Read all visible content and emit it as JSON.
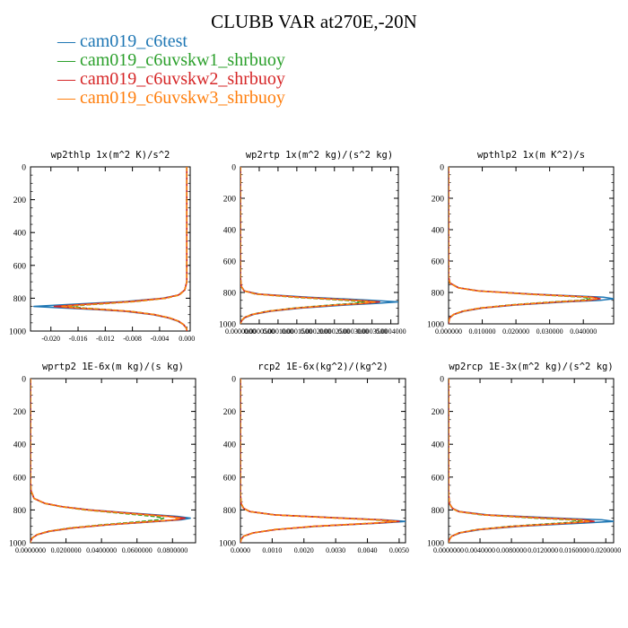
{
  "title": "CLUBB VAR at270E,-20N",
  "legend": [
    {
      "label": "cam019_c6test",
      "color": "#1f77b4"
    },
    {
      "label": "cam019_c6uvskw1_shrbuoy",
      "color": "#2ca02c"
    },
    {
      "label": "cam019_c6uvskw2_shrbuoy",
      "color": "#d62728"
    },
    {
      "label": "cam019_c6uvskw3_shrbuoy",
      "color": "#ff7f0e"
    }
  ],
  "chart_data": [
    {
      "type": "line",
      "title": "wp2thlp  1x(m^2 K)/s^2",
      "xlim": [
        -0.023,
        0.0005
      ],
      "ylim": [
        1000,
        0
      ],
      "xticks": [
        -0.02,
        -0.016,
        -0.012,
        -0.008,
        -0.004,
        0.0
      ],
      "xtick_labels": [
        "-0.020",
        "-0.016",
        "-0.012",
        "-0.008",
        "-0.004",
        "0.000"
      ],
      "yticks": [
        0,
        200,
        400,
        600,
        800,
        1000
      ],
      "ytick_labels": [
        "0",
        "200",
        "400",
        "600",
        "800",
        "1000"
      ],
      "y": [
        0,
        200,
        400,
        600,
        700,
        750,
        780,
        800,
        820,
        840,
        850,
        860,
        870,
        880,
        900,
        920,
        940,
        960,
        980,
        990,
        1000
      ],
      "series": [
        {
          "name": "cam019_c6test",
          "values": [
            0.0,
            0.0,
            0.0,
            0.0,
            0.0,
            -0.0003,
            -0.0012,
            -0.0035,
            -0.009,
            -0.018,
            -0.0225,
            -0.018,
            -0.013,
            -0.009,
            -0.005,
            -0.0027,
            -0.0013,
            -0.0005,
            -0.0001,
            0.0,
            0.0
          ]
        },
        {
          "name": "cam019_c6uvskw1_shrbuoy",
          "values": [
            0.0,
            0.0,
            0.0,
            0.0,
            0.0,
            -0.0003,
            -0.0011,
            -0.003,
            -0.0075,
            -0.0145,
            -0.0175,
            -0.015,
            -0.0115,
            -0.0082,
            -0.0047,
            -0.0025,
            -0.0012,
            -0.0005,
            -0.0001,
            0.0,
            0.0
          ]
        },
        {
          "name": "cam019_c6uvskw2_shrbuoy",
          "values": [
            0.0,
            0.0,
            0.0,
            0.0,
            0.0,
            -0.0003,
            -0.0012,
            -0.0033,
            -0.0082,
            -0.016,
            -0.0195,
            -0.0165,
            -0.0122,
            -0.0086,
            -0.0048,
            -0.0026,
            -0.0012,
            -0.0005,
            -0.0001,
            0.0,
            0.0
          ]
        },
        {
          "name": "cam019_c6uvskw3_shrbuoy",
          "values": [
            0.0,
            0.0,
            0.0,
            0.0,
            0.0,
            -0.0003,
            -0.0011,
            -0.0031,
            -0.0078,
            -0.015,
            -0.0185,
            -0.0158,
            -0.0118,
            -0.0084,
            -0.0047,
            -0.0025,
            -0.0012,
            -0.0005,
            -0.0001,
            0.0,
            0.0
          ]
        }
      ]
    },
    {
      "type": "line",
      "title": "wp2rtp  1x(m^2 kg)/(s^2 kg)",
      "xlim": [
        0,
        0.00042
      ],
      "ylim": [
        1000,
        0
      ],
      "xticks": [
        0,
        5e-05,
        0.0001,
        0.00015,
        0.0002,
        0.00025,
        0.0003,
        0.00035,
        0.0004
      ],
      "xtick_labels": [
        "0.0000000",
        "0.0000500",
        "0.0001000",
        "0.0001500",
        "0.0002000",
        "0.0002500",
        "0.0003000",
        "0.0003500",
        "0.0004000"
      ],
      "yticks": [
        0,
        200,
        400,
        600,
        800,
        1000
      ],
      "ytick_labels": [
        "0",
        "200",
        "400",
        "600",
        "800",
        "1000"
      ],
      "y": [
        0,
        200,
        400,
        600,
        700,
        760,
        790,
        810,
        830,
        850,
        860,
        870,
        880,
        900,
        920,
        940,
        960,
        980,
        1000
      ],
      "series": [
        {
          "name": "cam019_c6test",
          "values": [
            0,
            0,
            0,
            0,
            0,
            2e-06,
            1e-05,
            5e-05,
            0.00018,
            0.00035,
            0.00042,
            0.00036,
            0.00028,
            0.00016,
            8e-05,
            3.5e-05,
            1.2e-05,
            3e-06,
            0
          ]
        },
        {
          "name": "cam019_c6uvskw1_shrbuoy",
          "values": [
            0,
            0,
            0,
            0,
            0,
            2e-06,
            1e-05,
            4e-05,
            0.00014,
            0.00028,
            0.00033,
            0.0003,
            0.00024,
            0.00014,
            7e-05,
            3e-05,
            1e-05,
            3e-06,
            0
          ]
        },
        {
          "name": "cam019_c6uvskw2_shrbuoy",
          "values": [
            0,
            0,
            0,
            0,
            0,
            2e-06,
            1e-05,
            4.5e-05,
            0.00016,
            0.00031,
            0.00037,
            0.00033,
            0.00026,
            0.00015,
            7.5e-05,
            3.2e-05,
            1.1e-05,
            3e-06,
            0
          ]
        },
        {
          "name": "cam019_c6uvskw3_shrbuoy",
          "values": [
            0,
            0,
            0,
            0,
            0,
            2e-06,
            1e-05,
            4.2e-05,
            0.00015,
            0.0003,
            0.00036,
            0.00032,
            0.00025,
            0.000145,
            7.2e-05,
            3.1e-05,
            1e-05,
            3e-06,
            0
          ]
        }
      ]
    },
    {
      "type": "line",
      "title": "wpthlp2  1x(m K^2)/s",
      "xlim": [
        0,
        0.049
      ],
      "ylim": [
        1000,
        0
      ],
      "xticks": [
        0,
        0.01,
        0.02,
        0.03,
        0.04
      ],
      "xtick_labels": [
        "0.000000",
        "0.010000",
        "0.020000",
        "0.030000",
        "0.040000"
      ],
      "yticks": [
        0,
        200,
        400,
        600,
        800,
        1000
      ],
      "ytick_labels": [
        "0",
        "200",
        "400",
        "600",
        "800",
        "1000"
      ],
      "y": [
        0,
        200,
        400,
        600,
        700,
        740,
        770,
        790,
        810,
        830,
        840,
        850,
        860,
        880,
        900,
        920,
        940,
        960,
        980,
        1000
      ],
      "series": [
        {
          "name": "cam019_c6test",
          "values": [
            0,
            0,
            0,
            0,
            0,
            0.0004,
            0.003,
            0.009,
            0.025,
            0.046,
            0.049,
            0.045,
            0.035,
            0.02,
            0.01,
            0.0045,
            0.0016,
            0.0004,
            0.0001,
            0
          ]
        },
        {
          "name": "cam019_c6uvskw1_shrbuoy",
          "values": [
            0,
            0,
            0,
            0,
            0,
            0.0004,
            0.0028,
            0.0085,
            0.023,
            0.04,
            0.042,
            0.039,
            0.031,
            0.018,
            0.009,
            0.004,
            0.0015,
            0.0004,
            0.0001,
            0
          ]
        },
        {
          "name": "cam019_c6uvskw2_shrbuoy",
          "values": [
            0,
            0,
            0,
            0,
            0,
            0.0004,
            0.0029,
            0.0088,
            0.024,
            0.043,
            0.045,
            0.042,
            0.033,
            0.019,
            0.0095,
            0.0042,
            0.0015,
            0.0004,
            0.0001,
            0
          ]
        },
        {
          "name": "cam019_c6uvskw3_shrbuoy",
          "values": [
            0,
            0,
            0,
            0,
            0,
            0.0004,
            0.0028,
            0.0086,
            0.0235,
            0.042,
            0.044,
            0.041,
            0.032,
            0.0185,
            0.0092,
            0.0041,
            0.0015,
            0.0004,
            0.0001,
            0
          ]
        }
      ]
    },
    {
      "type": "line",
      "title": "wprtp2  1E-6x(m kg)/(s kg)",
      "xlim": [
        0,
        0.093
      ],
      "ylim": [
        1000,
        0
      ],
      "xticks": [
        0,
        0.02,
        0.04,
        0.06,
        0.08
      ],
      "xtick_labels": [
        "0.0000000",
        "0.0200000",
        "0.0400000",
        "0.0600000",
        "0.0800000"
      ],
      "yticks": [
        0,
        200,
        400,
        600,
        800,
        1000
      ],
      "ytick_labels": [
        "0",
        "200",
        "400",
        "600",
        "800",
        "1000"
      ],
      "y": [
        0,
        200,
        400,
        600,
        680,
        730,
        760,
        780,
        800,
        820,
        840,
        850,
        860,
        870,
        890,
        910,
        930,
        950,
        970,
        990,
        1000
      ],
      "series": [
        {
          "name": "cam019_c6test",
          "values": [
            0,
            0,
            0,
            0,
            0.0002,
            0.002,
            0.008,
            0.018,
            0.034,
            0.058,
            0.083,
            0.09,
            0.085,
            0.072,
            0.045,
            0.024,
            0.011,
            0.004,
            0.001,
            0.0001,
            0
          ]
        },
        {
          "name": "cam019_c6uvskw1_shrbuoy",
          "values": [
            0,
            0,
            0,
            0,
            0.0002,
            0.002,
            0.0078,
            0.017,
            0.031,
            0.051,
            0.07,
            0.075,
            0.072,
            0.063,
            0.041,
            0.022,
            0.01,
            0.0038,
            0.001,
            0.0001,
            0
          ]
        },
        {
          "name": "cam019_c6uvskw2_shrbuoy",
          "values": [
            0,
            0,
            0,
            0,
            0.0002,
            0.002,
            0.0082,
            0.0178,
            0.033,
            0.056,
            0.079,
            0.087,
            0.083,
            0.07,
            0.044,
            0.0235,
            0.0105,
            0.0039,
            0.001,
            0.0001,
            0
          ]
        },
        {
          "name": "cam019_c6uvskw3_shrbuoy",
          "values": [
            0,
            0,
            0,
            0,
            0.0002,
            0.002,
            0.008,
            0.0175,
            0.032,
            0.054,
            0.077,
            0.084,
            0.081,
            0.069,
            0.043,
            0.023,
            0.0102,
            0.0038,
            0.001,
            0.0001,
            0
          ]
        }
      ]
    },
    {
      "type": "line",
      "title": "rcp2  1E-6x(kg^2)/(kg^2)",
      "xlim": [
        0,
        0.0052
      ],
      "ylim": [
        1000,
        0
      ],
      "xticks": [
        0,
        0.001,
        0.002,
        0.003,
        0.004,
        0.005
      ],
      "xtick_labels": [
        "0.0000",
        "0.0010",
        "0.0020",
        "0.0030",
        "0.0040",
        "0.0050"
      ],
      "yticks": [
        0,
        200,
        400,
        600,
        800,
        1000
      ],
      "ytick_labels": [
        "0",
        "200",
        "400",
        "600",
        "800",
        "1000"
      ],
      "y": [
        0,
        200,
        400,
        600,
        700,
        760,
        790,
        810,
        830,
        850,
        860,
        870,
        880,
        900,
        920,
        940,
        960,
        980,
        1000
      ],
      "series": [
        {
          "name": "cam019_c6test",
          "values": [
            0,
            0,
            0,
            0,
            0,
            2e-05,
            0.0001,
            0.0003,
            0.0011,
            0.0033,
            0.0045,
            0.0052,
            0.0044,
            0.0024,
            0.0011,
            0.0004,
            0.0001,
            2e-05,
            0
          ]
        },
        {
          "name": "cam019_c6uvskw1_shrbuoy",
          "values": [
            0,
            0,
            0,
            0,
            0,
            2e-05,
            0.0001,
            0.00029,
            0.00105,
            0.0031,
            0.0042,
            0.0049,
            0.0042,
            0.0023,
            0.00105,
            0.0004,
            0.0001,
            2e-05,
            0
          ]
        },
        {
          "name": "cam019_c6uvskw2_shrbuoy",
          "values": [
            0,
            0,
            0,
            0,
            0,
            2e-05,
            0.0001,
            0.0003,
            0.00108,
            0.0032,
            0.0044,
            0.005,
            0.0043,
            0.0023,
            0.0011,
            0.0004,
            0.0001,
            2e-05,
            0
          ]
        },
        {
          "name": "cam019_c6uvskw3_shrbuoy",
          "values": [
            0,
            0,
            0,
            0,
            0,
            2e-05,
            0.0001,
            0.0003,
            0.00106,
            0.0031,
            0.0043,
            0.0049,
            0.0042,
            0.0023,
            0.00105,
            0.0004,
            0.0001,
            2e-05,
            0
          ]
        }
      ]
    },
    {
      "type": "line",
      "title": "wp2rcp  1E-3x(m^2 kg)/(s^2 kg)",
      "xlim": [
        0,
        0.021
      ],
      "ylim": [
        1000,
        0
      ],
      "xticks": [
        0,
        0.004,
        0.008,
        0.012,
        0.016,
        0.02
      ],
      "xtick_labels": [
        "0.0000000",
        "0.0040000",
        "0.0080000",
        "0.0120000",
        "0.0160000",
        "0.0200000"
      ],
      "yticks": [
        0,
        200,
        400,
        600,
        800,
        1000
      ],
      "ytick_labels": [
        "0",
        "200",
        "400",
        "600",
        "800",
        "1000"
      ],
      "y": [
        0,
        200,
        400,
        600,
        700,
        760,
        790,
        810,
        830,
        850,
        860,
        870,
        880,
        900,
        920,
        940,
        960,
        980,
        1000
      ],
      "series": [
        {
          "name": "cam019_c6test",
          "values": [
            0,
            0,
            0,
            0,
            0,
            0.0001,
            0.0005,
            0.0014,
            0.005,
            0.014,
            0.0195,
            0.021,
            0.017,
            0.009,
            0.004,
            0.0015,
            0.0004,
            0.0001,
            0
          ]
        },
        {
          "name": "cam019_c6uvskw1_shrbuoy",
          "values": [
            0,
            0,
            0,
            0,
            0,
            0.0001,
            0.00045,
            0.0012,
            0.0042,
            0.011,
            0.0155,
            0.017,
            0.0142,
            0.0078,
            0.0035,
            0.0013,
            0.0004,
            0.0001,
            0
          ]
        },
        {
          "name": "cam019_c6uvskw2_shrbuoy",
          "values": [
            0,
            0,
            0,
            0,
            0,
            0.0001,
            0.00048,
            0.0013,
            0.0046,
            0.0125,
            0.0172,
            0.0185,
            0.0155,
            0.0084,
            0.0037,
            0.0014,
            0.0004,
            0.0001,
            0
          ]
        },
        {
          "name": "cam019_c6uvskw3_shrbuoy",
          "values": [
            0,
            0,
            0,
            0,
            0,
            0.0001,
            0.00047,
            0.00125,
            0.0045,
            0.012,
            0.0166,
            0.018,
            0.015,
            0.0082,
            0.0036,
            0.0013,
            0.0004,
            0.0001,
            0
          ]
        }
      ]
    }
  ]
}
